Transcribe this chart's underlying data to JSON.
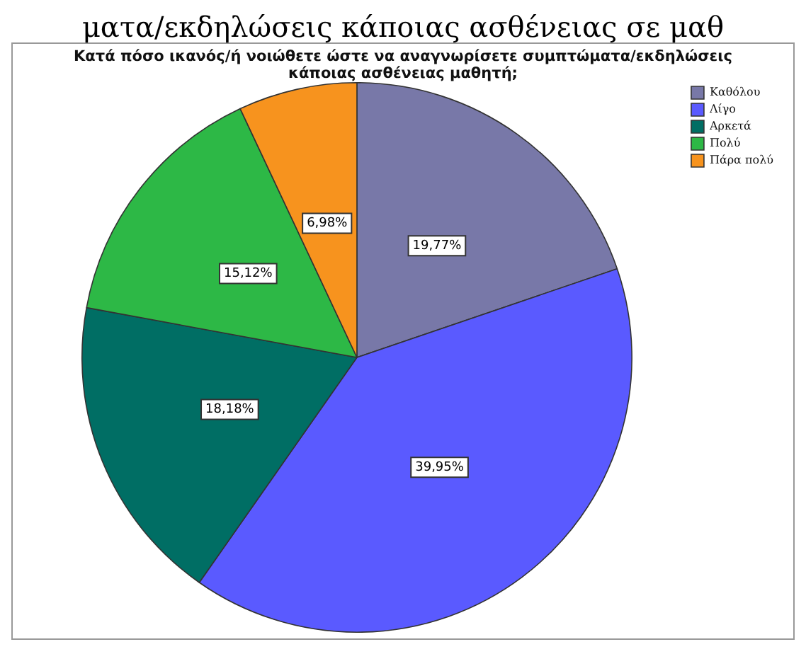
{
  "chart_data": {
    "type": "pie",
    "title": "Κατά πόσο ικανός/ή νοιώθετε ώστε να αναγνωρίσετε συμπτώματα/εκδηλώσεις\nκάποιας ασθένειας μαθητή;",
    "annotations": [
      "ματα/εκδηλώσεις κάποιας ασθένειας σε μαθ"
    ],
    "categories": [
      "Καθόλου",
      "Λίγο",
      "Αρκετά",
      "Πολύ",
      "Πάρα πολύ"
    ],
    "values": [
      19.77,
      39.95,
      18.18,
      15.12,
      6.98
    ],
    "value_labels": [
      "19,77%",
      "39,95%",
      "18,18%",
      "15,12%",
      "6,98%"
    ],
    "colors": [
      "#7878a8",
      "#5a5aff",
      "#006e64",
      "#2db846",
      "#f7931e"
    ],
    "legend": "top right"
  }
}
